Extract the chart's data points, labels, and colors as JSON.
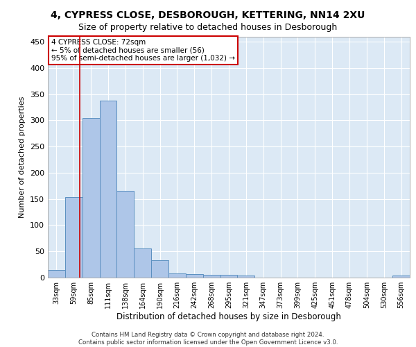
{
  "title1": "4, CYPRESS CLOSE, DESBOROUGH, KETTERING, NN14 2XU",
  "title2": "Size of property relative to detached houses in Desborough",
  "xlabel": "Distribution of detached houses by size in Desborough",
  "ylabel": "Number of detached properties",
  "bar_labels": [
    "33sqm",
    "59sqm",
    "85sqm",
    "111sqm",
    "138sqm",
    "164sqm",
    "190sqm",
    "216sqm",
    "242sqm",
    "268sqm",
    "295sqm",
    "321sqm",
    "347sqm",
    "373sqm",
    "399sqm",
    "425sqm",
    "451sqm",
    "478sqm",
    "504sqm",
    "530sqm",
    "556sqm"
  ],
  "bar_heights": [
    15,
    153,
    305,
    338,
    165,
    55,
    33,
    8,
    7,
    5,
    5,
    4,
    0,
    0,
    0,
    0,
    0,
    0,
    0,
    0,
    4
  ],
  "bar_color": "#aec6e8",
  "bar_edge_color": "#5a8fc0",
  "background_color": "#dce9f5",
  "annotation_line1": "4 CYPRESS CLOSE: 72sqm",
  "annotation_line2": "← 5% of detached houses are smaller (56)",
  "annotation_line3": "95% of semi-detached houses are larger (1,032) →",
  "annotation_box_color": "#ffffff",
  "annotation_box_edge_color": "#cc0000",
  "red_line_x": 1.35,
  "ylim": [
    0,
    460
  ],
  "yticks": [
    0,
    50,
    100,
    150,
    200,
    250,
    300,
    350,
    400,
    450
  ],
  "footer1": "Contains HM Land Registry data © Crown copyright and database right 2024.",
  "footer2": "Contains public sector information licensed under the Open Government Licence v3.0."
}
